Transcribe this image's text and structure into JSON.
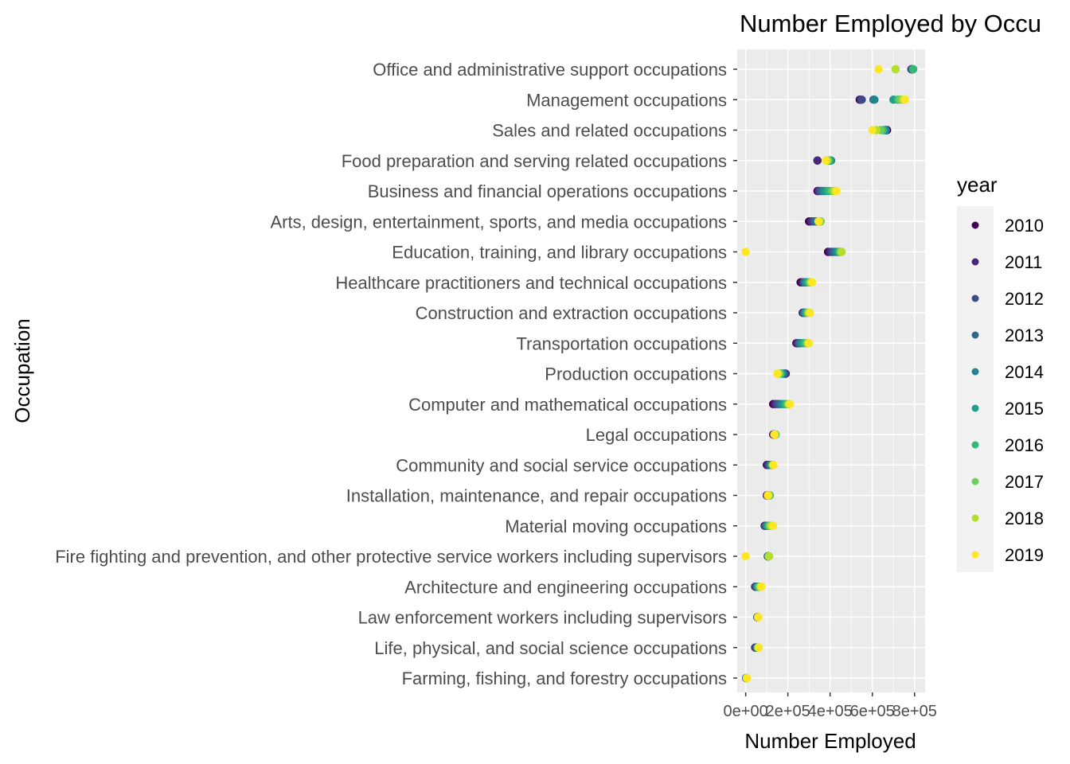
{
  "chart_data": {
    "type": "scatter",
    "title": "Number Employed by Occu",
    "xlabel": "Number Employed",
    "ylabel": "Occupation",
    "xlim": [
      -40000,
      850000
    ],
    "x_ticks": [
      0,
      200000,
      400000,
      600000,
      800000
    ],
    "x_tick_labels": [
      "0e+00",
      "2e+05",
      "4e+05",
      "6e+05",
      "8e+05"
    ],
    "grid": true,
    "legend": {
      "title": "year",
      "placement": "right",
      "years": [
        "2010",
        "2011",
        "2012",
        "2013",
        "2014",
        "2015",
        "2016",
        "2017",
        "2018",
        "2019"
      ],
      "colors": [
        "#440154",
        "#482878",
        "#3E4A89",
        "#31688E",
        "#26828E",
        "#1F9E89",
        "#35B779",
        "#6DCD59",
        "#B4DE2C",
        "#FDE725"
      ]
    },
    "categories": [
      "Office and administrative support occupations",
      "Management occupations",
      "Sales and related occupations",
      "Food preparation and serving related occupations",
      "Business and financial operations occupations",
      "Arts, design, entertainment, sports, and media occupations",
      "Education, training, and library occupations",
      "Healthcare practitioners and technical occupations",
      "Construction and extraction occupations",
      "Transportation occupations",
      "Production occupations",
      "Computer and mathematical occupations",
      "Legal occupations",
      "Community and social service occupations",
      "Installation, maintenance, and repair occupations",
      "Material moving occupations",
      "Fire fighting and prevention, and other protective service workers including supervisors",
      "Architecture and engineering occupations",
      "Law enforcement workers including supervisors",
      "Life, physical, and social science occupations",
      "Farming, fishing, and forestry occupations"
    ],
    "values_by_year": [
      [
        785000,
        785000,
        787000,
        790000,
        792000,
        793000,
        794000,
        710000,
        710000,
        630000
      ],
      [
        540000,
        545000,
        550000,
        605000,
        610000,
        700000,
        720000,
        730000,
        745000,
        755000
      ],
      [
        670000,
        665000,
        665000,
        663000,
        662000,
        655000,
        650000,
        640000,
        620000,
        600000
      ],
      [
        340000,
        340000,
        385000,
        400000,
        405000,
        400000,
        395000,
        390000,
        385000,
        380000
      ],
      [
        340000,
        345000,
        350000,
        360000,
        370000,
        380000,
        395000,
        410000,
        420000,
        430000
      ],
      [
        300000,
        310000,
        320000,
        330000,
        340000,
        350000,
        355000,
        355000,
        350000,
        345000
      ],
      [
        390000,
        400000,
        410000,
        420000,
        430000,
        440000,
        445000,
        450000,
        455000,
        0
      ],
      [
        260000,
        270000,
        275000,
        280000,
        285000,
        290000,
        300000,
        305000,
        310000,
        315000
      ],
      [
        270000,
        272000,
        275000,
        278000,
        280000,
        285000,
        290000,
        295000,
        300000,
        305000
      ],
      [
        240000,
        245000,
        250000,
        255000,
        260000,
        270000,
        280000,
        290000,
        295000,
        300000
      ],
      [
        190000,
        188000,
        185000,
        180000,
        175000,
        170000,
        165000,
        160000,
        155000,
        150000
      ],
      [
        130000,
        140000,
        150000,
        160000,
        170000,
        180000,
        190000,
        200000,
        205000,
        210000
      ],
      [
        130000,
        132000,
        134000,
        136000,
        138000,
        140000,
        142000,
        140000,
        138000,
        136000
      ],
      [
        100000,
        105000,
        110000,
        115000,
        120000,
        122000,
        125000,
        128000,
        130000,
        132000
      ],
      [
        100000,
        102000,
        105000,
        108000,
        110000,
        112000,
        115000,
        112000,
        108000,
        105000
      ],
      [
        90000,
        92000,
        95000,
        98000,
        100000,
        105000,
        110000,
        115000,
        120000,
        130000
      ],
      [
        105000,
        105000,
        106000,
        107000,
        108000,
        109000,
        110000,
        110000,
        110000,
        0
      ],
      [
        45000,
        47000,
        50000,
        52000,
        55000,
        58000,
        62000,
        66000,
        70000,
        75000
      ],
      [
        55000,
        55000,
        56000,
        56000,
        57000,
        57000,
        58000,
        58000,
        59000,
        60000
      ],
      [
        45000,
        47000,
        50000,
        52000,
        55000,
        56000,
        58000,
        59000,
        60000,
        62000
      ],
      [
        2000,
        2500,
        3000,
        3500,
        4000,
        4500,
        5000,
        5500,
        5000,
        6000
      ]
    ]
  }
}
